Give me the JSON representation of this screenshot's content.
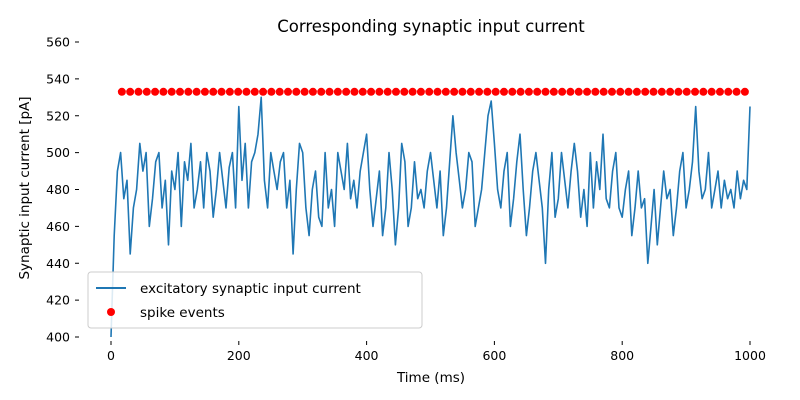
{
  "chart_data": {
    "type": "line",
    "title": "Corresponding synaptic input current",
    "xlabel": "Time (ms)",
    "ylabel": "Synaptic input current [pA]",
    "xlim": [
      -10,
      1000
    ],
    "ylim": [
      400,
      560
    ],
    "x_ticks": [
      0,
      200,
      400,
      600,
      800,
      1000
    ],
    "y_ticks": [
      400,
      420,
      440,
      460,
      480,
      500,
      520,
      540,
      560
    ],
    "grid": false,
    "legend_position": "lower-left",
    "series": [
      {
        "name": "excitatory synaptic input current",
        "kind": "line",
        "color": "#1f77b4",
        "x": [
          0,
          5,
          10,
          15,
          20,
          25,
          30,
          35,
          40,
          45,
          50,
          55,
          60,
          65,
          70,
          75,
          80,
          85,
          90,
          95,
          100,
          105,
          110,
          115,
          120,
          125,
          130,
          135,
          140,
          145,
          150,
          155,
          160,
          165,
          170,
          175,
          180,
          185,
          190,
          195,
          200,
          205,
          210,
          215,
          220,
          225,
          230,
          235,
          240,
          245,
          250,
          255,
          260,
          265,
          270,
          275,
          280,
          285,
          290,
          295,
          300,
          305,
          310,
          315,
          320,
          325,
          330,
          335,
          340,
          345,
          350,
          355,
          360,
          365,
          370,
          375,
          380,
          385,
          390,
          395,
          400,
          405,
          410,
          415,
          420,
          425,
          430,
          435,
          440,
          445,
          450,
          455,
          460,
          465,
          470,
          475,
          480,
          485,
          490,
          495,
          500,
          505,
          510,
          515,
          520,
          525,
          530,
          535,
          540,
          545,
          550,
          555,
          560,
          565,
          570,
          575,
          580,
          585,
          590,
          595,
          600,
          605,
          610,
          615,
          620,
          625,
          630,
          635,
          640,
          645,
          650,
          655,
          660,
          665,
          670,
          675,
          680,
          685,
          690,
          695,
          700,
          705,
          710,
          715,
          720,
          725,
          730,
          735,
          740,
          745,
          750,
          755,
          760,
          765,
          770,
          775,
          780,
          785,
          790,
          795,
          800,
          805,
          810,
          815,
          820,
          825,
          830,
          835,
          840,
          845,
          850,
          855,
          860,
          865,
          870,
          875,
          880,
          885,
          890,
          895,
          900,
          905,
          910,
          915,
          920,
          925,
          930,
          935,
          940,
          945,
          950,
          955,
          960,
          965,
          970,
          975,
          980,
          985,
          990,
          995,
          1000
        ],
        "y": [
          400,
          455,
          490,
          500,
          475,
          485,
          445,
          470,
          480,
          505,
          490,
          500,
          460,
          475,
          495,
          500,
          470,
          485,
          450,
          490,
          480,
          500,
          460,
          495,
          485,
          505,
          470,
          480,
          495,
          470,
          500,
          490,
          465,
          480,
          500,
          485,
          470,
          492,
          500,
          470,
          525,
          485,
          505,
          470,
          495,
          500,
          510,
          530,
          485,
          470,
          500,
          490,
          480,
          495,
          500,
          470,
          485,
          445,
          480,
          505,
          500,
          470,
          455,
          480,
          490,
          465,
          460,
          500,
          470,
          480,
          460,
          500,
          490,
          480,
          505,
          475,
          485,
          470,
          490,
          500,
          510,
          480,
          460,
          475,
          490,
          455,
          470,
          500,
          480,
          450,
          470,
          505,
          495,
          460,
          470,
          495,
          475,
          480,
          470,
          490,
          500,
          485,
          470,
          490,
          455,
          470,
          495,
          520,
          500,
          485,
          470,
          480,
          500,
          495,
          460,
          470,
          480,
          500,
          520,
          528,
          505,
          480,
          470,
          490,
          500,
          460,
          475,
          495,
          510,
          480,
          455,
          470,
          490,
          500,
          485,
          470,
          440,
          480,
          500,
          465,
          475,
          500,
          485,
          470,
          490,
          505,
          490,
          465,
          480,
          460,
          500,
          470,
          495,
          480,
          510,
          475,
          470,
          490,
          500,
          470,
          465,
          480,
          490,
          455,
          470,
          490,
          470,
          475,
          440,
          460,
          480,
          450,
          470,
          490,
          475,
          480,
          455,
          470,
          490,
          500,
          470,
          480,
          495,
          525,
          490,
          475,
          480,
          500,
          470,
          480,
          490,
          470,
          485,
          475,
          480,
          470,
          490,
          475,
          485,
          480,
          525
        ]
      },
      {
        "name": "spike events",
        "kind": "scatter",
        "color": "#ff0000",
        "y": 533,
        "x": [
          17,
          30,
          43,
          56,
          69,
          82,
          95,
          108,
          121,
          134,
          147,
          160,
          173,
          186,
          199,
          212,
          225,
          238,
          251,
          264,
          277,
          290,
          303,
          316,
          329,
          342,
          355,
          368,
          381,
          394,
          407,
          420,
          433,
          446,
          459,
          472,
          485,
          498,
          511,
          524,
          537,
          550,
          563,
          576,
          589,
          602,
          615,
          628,
          641,
          654,
          667,
          680,
          693,
          706,
          719,
          732,
          745,
          758,
          771,
          784,
          797,
          810,
          823,
          836,
          849,
          862,
          875,
          888,
          901,
          914,
          927,
          940,
          953,
          966,
          979,
          992
        ]
      }
    ]
  }
}
